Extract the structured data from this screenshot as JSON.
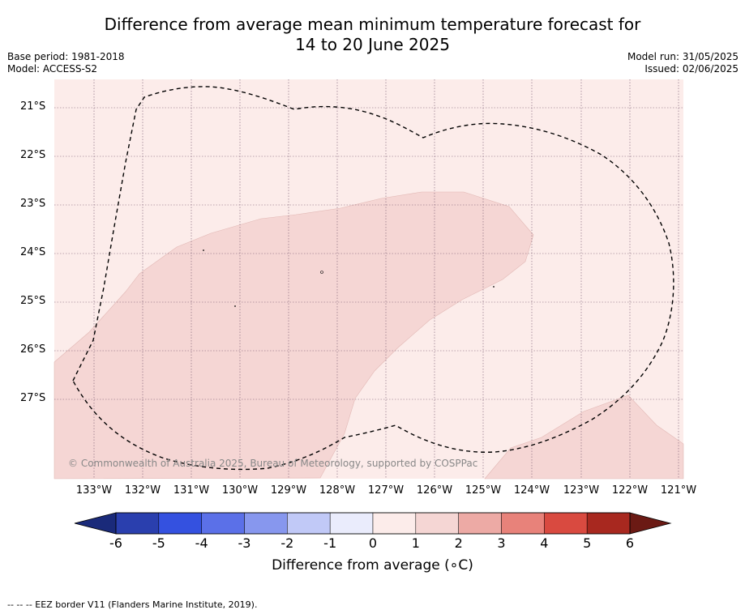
{
  "title_line1": "Difference from average mean minimum temperature forecast for",
  "title_line2": "14 to 20 June 2025",
  "base_period": "Base period: 1981-2018",
  "model": "Model: ACCESS-S2",
  "model_run": "Model run: 31/05/2025",
  "issued": "Issued: 02/06/2025",
  "copyright": "© Commonwealth of Australia 2025, Bureau of Meteorology, supported by COSPPac",
  "lat_labels": [
    "21°S",
    "22°S",
    "23°S",
    "24°S",
    "25°S",
    "26°S",
    "27°S"
  ],
  "lon_labels": [
    "133°W",
    "132°W",
    "131°W",
    "130°W",
    "129°W",
    "128°W",
    "127°W",
    "126°W",
    "125°W",
    "124°W",
    "123°W",
    "122°W",
    "121°W"
  ],
  "colorbar": {
    "label": "Difference from average (∘C)",
    "ticks": [
      "-6",
      "-5",
      "-4",
      "-3",
      "-2",
      "-1",
      "0",
      "1",
      "2",
      "3",
      "4",
      "5",
      "6"
    ],
    "colors": [
      "#1a2a7a",
      "#2a3fae",
      "#3451e0",
      "#5b70e8",
      "#8797ee",
      "#c1c9f7",
      "#eaecfc",
      "#fcecea",
      "#f5d6d4",
      "#edaaa5",
      "#e8827a",
      "#d94a40",
      "#a8281f",
      "#6b1a14"
    ]
  },
  "map_colors": {
    "bin_0_1": "#fcecea",
    "bin_1_2": "#f5d6d4"
  },
  "footer": "-- -- -- EEZ border V11 (Flanders Marine Institute, 2019)."
}
